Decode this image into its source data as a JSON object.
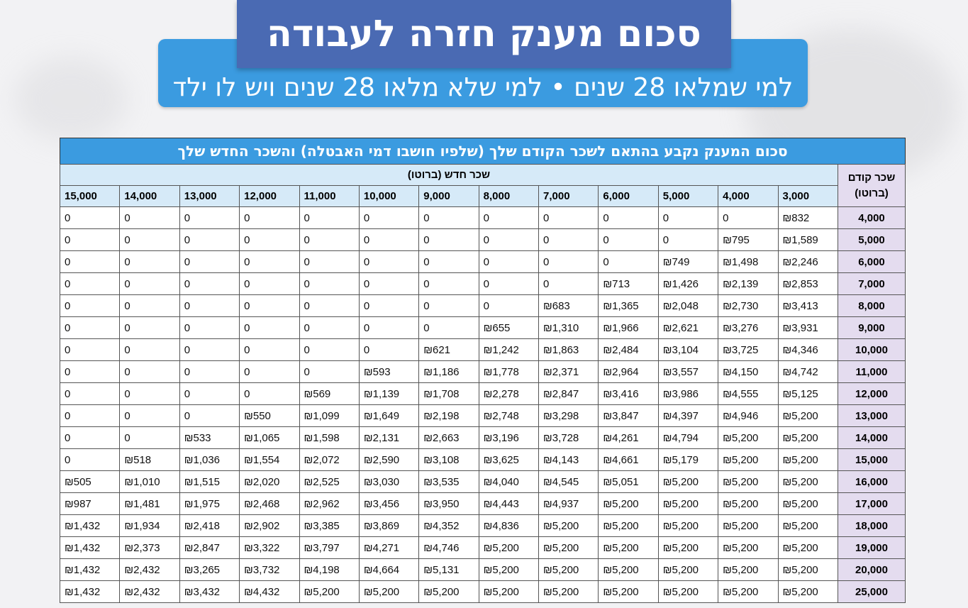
{
  "title": "סכום מענק חזרה לעבודה",
  "subtitle": "למי שמלאו 28 שנים • למי שלא מלאו 28 שנים ויש לו ילד",
  "table": {
    "caption": "סכום המענק נקבע בהתאם לשכר הקודם שלך (שלפיו חושבו דמי האבטלה) והשכר החדש שלך",
    "row_header_label": "שכר קודם (ברוטו)",
    "col_group_label": "שכר חדש (ברוטו)",
    "columns": [
      "3,000",
      "4,000",
      "5,000",
      "6,000",
      "7,000",
      "8,000",
      "9,000",
      "10,000",
      "11,000",
      "12,000",
      "13,000",
      "14,000",
      "15,000"
    ],
    "rows": [
      {
        "label": "4,000",
        "cells": [
          "₪832",
          "0",
          "0",
          "0",
          "0",
          "0",
          "0",
          "0",
          "0",
          "0",
          "0",
          "0",
          "0"
        ]
      },
      {
        "label": "5,000",
        "cells": [
          "₪1,589",
          "₪795",
          "0",
          "0",
          "0",
          "0",
          "0",
          "0",
          "0",
          "0",
          "0",
          "0",
          "0"
        ]
      },
      {
        "label": "6,000",
        "cells": [
          "₪2,246",
          "₪1,498",
          "₪749",
          "0",
          "0",
          "0",
          "0",
          "0",
          "0",
          "0",
          "0",
          "0",
          "0"
        ]
      },
      {
        "label": "7,000",
        "cells": [
          "₪2,853",
          "₪2,139",
          "₪1,426",
          "₪713",
          "0",
          "0",
          "0",
          "0",
          "0",
          "0",
          "0",
          "0",
          "0"
        ]
      },
      {
        "label": "8,000",
        "cells": [
          "₪3,413",
          "₪2,730",
          "₪2,048",
          "₪1,365",
          "₪683",
          "0",
          "0",
          "0",
          "0",
          "0",
          "0",
          "0",
          "0"
        ]
      },
      {
        "label": "9,000",
        "cells": [
          "₪3,931",
          "₪3,276",
          "₪2,621",
          "₪1,966",
          "₪1,310",
          "₪655",
          "0",
          "0",
          "0",
          "0",
          "0",
          "0",
          "0"
        ]
      },
      {
        "label": "10,000",
        "cells": [
          "₪4,346",
          "₪3,725",
          "₪3,104",
          "₪2,484",
          "₪1,863",
          "₪1,242",
          "₪621",
          "0",
          "0",
          "0",
          "0",
          "0",
          "0"
        ]
      },
      {
        "label": "11,000",
        "cells": [
          "₪4,742",
          "₪4,150",
          "₪3,557",
          "₪2,964",
          "₪2,371",
          "₪1,778",
          "₪1,186",
          "₪593",
          "0",
          "0",
          "0",
          "0",
          "0"
        ]
      },
      {
        "label": "12,000",
        "cells": [
          "₪5,125",
          "₪4,555",
          "₪3,986",
          "₪3,416",
          "₪2,847",
          "₪2,278",
          "₪1,708",
          "₪1,139",
          "₪569",
          "0",
          "0",
          "0",
          "0"
        ]
      },
      {
        "label": "13,000",
        "cells": [
          "₪5,200",
          "₪4,946",
          "₪4,397",
          "₪3,847",
          "₪3,298",
          "₪2,748",
          "₪2,198",
          "₪1,649",
          "₪1,099",
          "₪550",
          "0",
          "0",
          "0"
        ]
      },
      {
        "label": "14,000",
        "cells": [
          "₪5,200",
          "₪5,200",
          "₪4,794",
          "₪4,261",
          "₪3,728",
          "₪3,196",
          "₪2,663",
          "₪2,131",
          "₪1,598",
          "₪1,065",
          "₪533",
          "0",
          "0"
        ]
      },
      {
        "label": "15,000",
        "cells": [
          "₪5,200",
          "₪5,200",
          "₪5,179",
          "₪4,661",
          "₪4,143",
          "₪3,625",
          "₪3,108",
          "₪2,590",
          "₪2,072",
          "₪1,554",
          "₪1,036",
          "₪518",
          "0"
        ]
      },
      {
        "label": "16,000",
        "cells": [
          "₪5,200",
          "₪5,200",
          "₪5,200",
          "₪5,051",
          "₪4,545",
          "₪4,040",
          "₪3,535",
          "₪3,030",
          "₪2,525",
          "₪2,020",
          "₪1,515",
          "₪1,010",
          "₪505"
        ]
      },
      {
        "label": "17,000",
        "cells": [
          "₪5,200",
          "₪5,200",
          "₪5,200",
          "₪5,200",
          "₪4,937",
          "₪4,443",
          "₪3,950",
          "₪3,456",
          "₪2,962",
          "₪2,468",
          "₪1,975",
          "₪1,481",
          "₪987"
        ]
      },
      {
        "label": "18,000",
        "cells": [
          "₪5,200",
          "₪5,200",
          "₪5,200",
          "₪5,200",
          "₪5,200",
          "₪4,836",
          "₪4,352",
          "₪3,869",
          "₪3,385",
          "₪2,902",
          "₪2,418",
          "₪1,934",
          "₪1,432"
        ]
      },
      {
        "label": "19,000",
        "cells": [
          "₪5,200",
          "₪5,200",
          "₪5,200",
          "₪5,200",
          "₪5,200",
          "₪5,200",
          "₪4,746",
          "₪4,271",
          "₪3,797",
          "₪3,322",
          "₪2,847",
          "₪2,373",
          "₪1,432"
        ]
      },
      {
        "label": "20,000",
        "cells": [
          "₪5,200",
          "₪5,200",
          "₪5,200",
          "₪5,200",
          "₪5,200",
          "₪5,200",
          "₪5,131",
          "₪4,664",
          "₪4,198",
          "₪3,732",
          "₪3,265",
          "₪2,432",
          "₪1,432"
        ]
      },
      {
        "label": "25,000",
        "cells": [
          "₪5,200",
          "₪5,200",
          "₪5,200",
          "₪5,200",
          "₪5,200",
          "₪5,200",
          "₪5,200",
          "₪5,200",
          "₪5,200",
          "₪4,432",
          "₪3,432",
          "₪2,432",
          "₪1,432"
        ]
      }
    ]
  },
  "colors": {
    "title_bg": "#4a6ab3",
    "accent_blue": "#3b9be0",
    "header_bg": "#d6eaf8",
    "row_header_bg": "#e4dcef"
  }
}
